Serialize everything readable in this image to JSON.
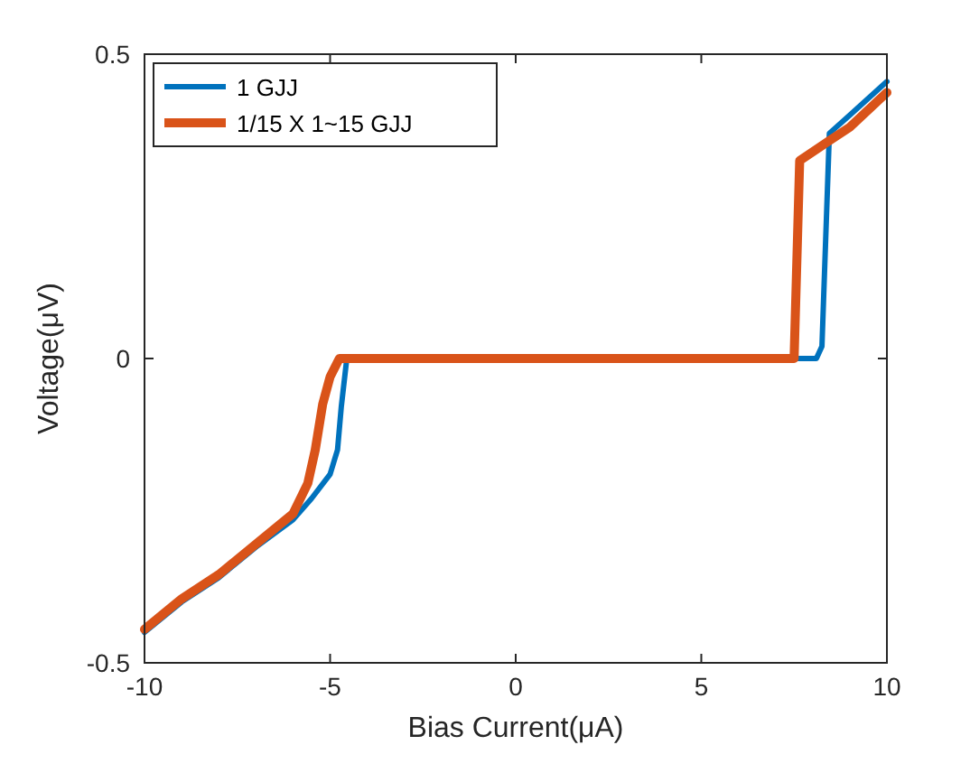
{
  "chart_data": {
    "type": "line",
    "xlabel": "Bias Current(μA)",
    "ylabel": "Voltage(μV)",
    "xlim": [
      -10,
      10
    ],
    "ylim": [
      -0.5,
      0.5
    ],
    "xticks": [
      -10,
      -5,
      0,
      5,
      10
    ],
    "yticks": [
      -0.5,
      0,
      0.5
    ],
    "grid": false,
    "legend": "top left",
    "series": [
      {
        "name": "1 GJJ",
        "color": "#0072bd",
        "x": [
          -10,
          -9,
          -8,
          -7,
          -6,
          -5.5,
          -5,
          -4.8,
          -4.7,
          -4.55,
          0,
          5,
          8.1,
          8.25,
          8.45,
          9,
          10
        ],
        "values": [
          -0.45,
          -0.4,
          -0.36,
          -0.31,
          -0.265,
          -0.23,
          -0.19,
          -0.15,
          -0.08,
          0,
          0,
          0,
          0,
          0.02,
          0.37,
          0.4,
          0.455
        ]
      },
      {
        "name": "1/15 X 1~15 GJJ",
        "color": "#d95319",
        "x": [
          -10,
          -9,
          -8,
          -7,
          -6,
          -5.6,
          -5.4,
          -5.2,
          -5,
          -4.75,
          0,
          5,
          7.5,
          7.65,
          8.5,
          9,
          10
        ],
        "values": [
          -0.445,
          -0.395,
          -0.355,
          -0.305,
          -0.255,
          -0.205,
          -0.15,
          -0.075,
          -0.03,
          0,
          0,
          0,
          0,
          0.325,
          0.36,
          0.38,
          0.437
        ]
      }
    ]
  }
}
